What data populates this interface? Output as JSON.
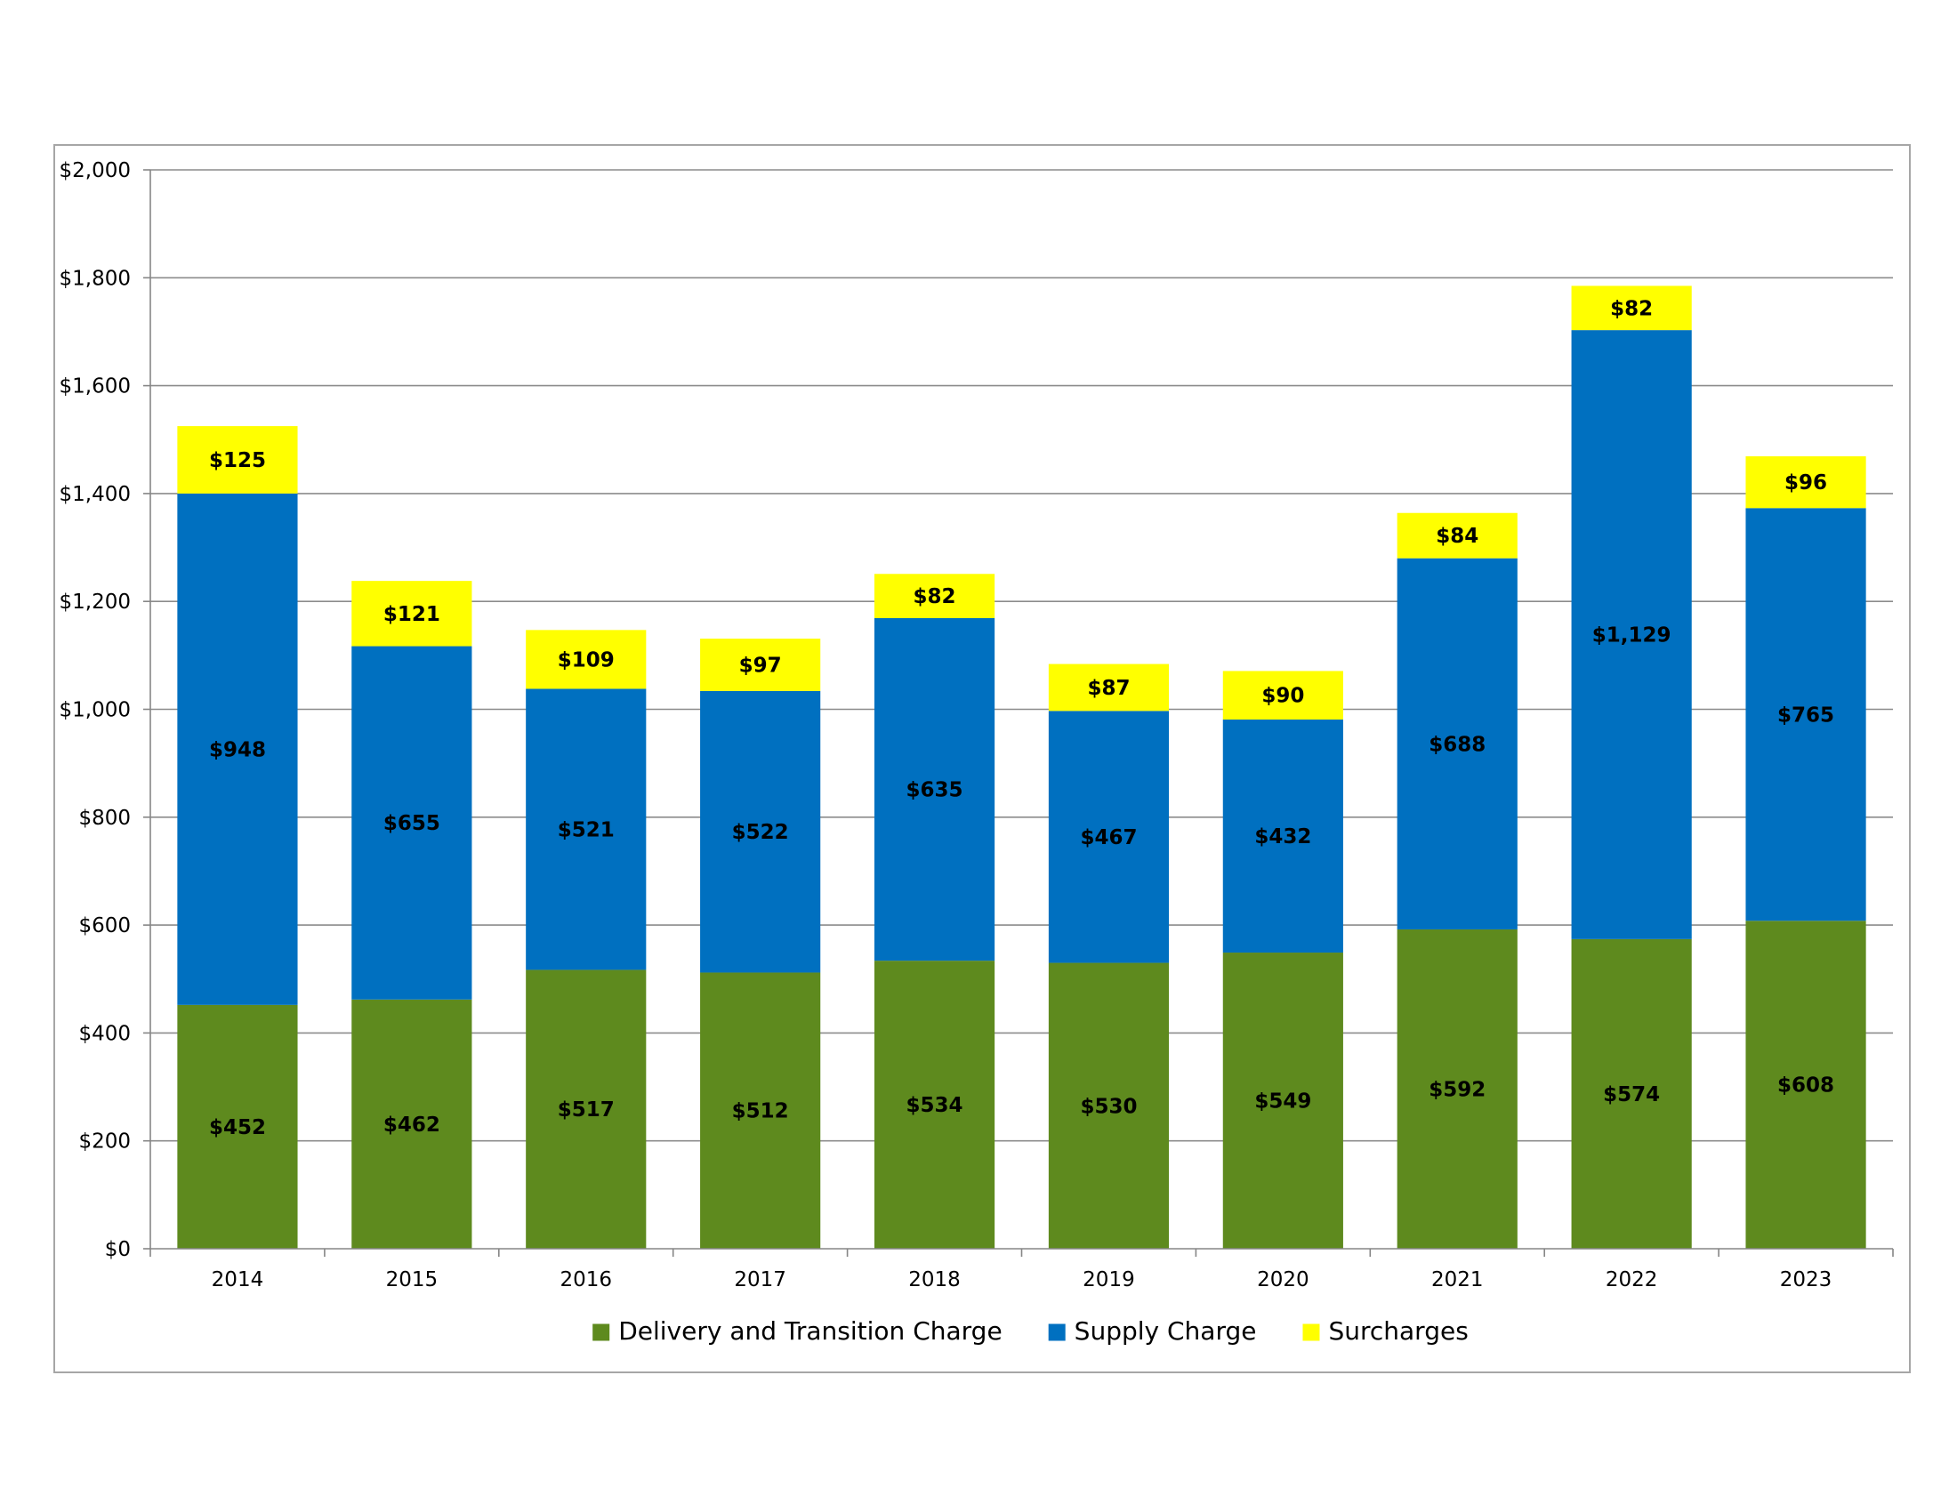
{
  "chart_data": {
    "type": "bar",
    "stacked": true,
    "title": "",
    "xlabel": "",
    "ylabel": "",
    "ylim": [
      0,
      2000
    ],
    "yticks": [
      0,
      200,
      400,
      600,
      800,
      1000,
      1200,
      1400,
      1600,
      1800,
      2000
    ],
    "ytick_labels": [
      "$0",
      "$200",
      "$400",
      "$600",
      "$800",
      "$1,000",
      "$1,200",
      "$1,400",
      "$1,600",
      "$1,800",
      "$2,000"
    ],
    "grid": true,
    "legend_position": "bottom",
    "categories": [
      "2014",
      "2015",
      "2016",
      "2017",
      "2018",
      "2019",
      "2020",
      "2021",
      "2022",
      "2023"
    ],
    "series": [
      {
        "name": "Delivery and Transition Charge",
        "color": "#5e8a1e",
        "values": [
          452,
          462,
          517,
          512,
          534,
          530,
          549,
          592,
          574,
          608
        ],
        "labels": [
          "$452",
          "$462",
          "$517",
          "$512",
          "$534",
          "$530",
          "$549",
          "$592",
          "$574",
          "$608"
        ]
      },
      {
        "name": "Supply Charge",
        "color": "#0070c0",
        "values": [
          948,
          655,
          521,
          522,
          635,
          467,
          432,
          688,
          1129,
          765
        ],
        "labels": [
          "$948",
          "$655",
          "$521",
          "$522",
          "$635",
          "$467",
          "$432",
          "$688",
          "$1,129",
          "$765"
        ]
      },
      {
        "name": "Surcharges",
        "color": "#ffff00",
        "values": [
          125,
          121,
          109,
          97,
          82,
          87,
          90,
          84,
          82,
          96
        ],
        "labels": [
          "$125",
          "$121",
          "$109",
          "$97",
          "$82",
          "$87",
          "$90",
          "$84",
          "$82",
          "$96"
        ]
      }
    ]
  }
}
